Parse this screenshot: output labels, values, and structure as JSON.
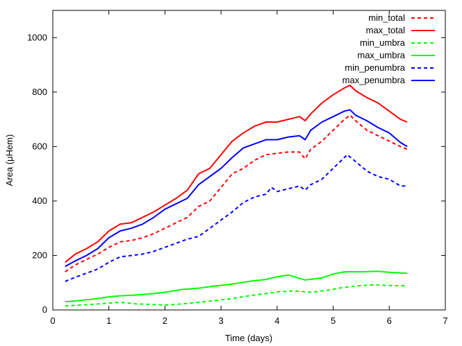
{
  "chart_data": {
    "type": "line",
    "xlabel": "Time (days)",
    "ylabel": "Area (μHem)",
    "xlim": [
      0,
      7
    ],
    "ylim": [
      0,
      1100
    ],
    "xticks": [
      0,
      1,
      2,
      3,
      4,
      5,
      6,
      7
    ],
    "yticks": [
      0,
      200,
      400,
      600,
      800,
      1000
    ],
    "legend_position": "top-right",
    "series": [
      {
        "name": "min_total",
        "color": "#ff0000",
        "dash": "dashed",
        "x": [
          0.22,
          0.4,
          0.6,
          0.8,
          1.0,
          1.2,
          1.4,
          1.6,
          1.8,
          2.0,
          2.2,
          2.4,
          2.6,
          2.8,
          3.0,
          3.2,
          3.4,
          3.6,
          3.8,
          4.0,
          4.2,
          4.4,
          4.5,
          4.6,
          4.8,
          5.0,
          5.2,
          5.3,
          5.4,
          5.6,
          5.8,
          6.0,
          6.2,
          6.32
        ],
        "y": [
          140,
          165,
          185,
          205,
          230,
          250,
          255,
          265,
          280,
          300,
          320,
          340,
          380,
          400,
          450,
          500,
          520,
          550,
          570,
          575,
          580,
          580,
          555,
          590,
          620,
          660,
          700,
          715,
          695,
          660,
          640,
          620,
          600,
          590
        ]
      },
      {
        "name": "max_total",
        "color": "#ff0000",
        "dash": "solid",
        "x": [
          0.22,
          0.4,
          0.6,
          0.8,
          1.0,
          1.2,
          1.4,
          1.6,
          1.8,
          2.0,
          2.2,
          2.4,
          2.6,
          2.8,
          3.0,
          3.2,
          3.4,
          3.6,
          3.8,
          4.0,
          4.2,
          4.4,
          4.5,
          4.6,
          4.8,
          5.0,
          5.2,
          5.3,
          5.4,
          5.6,
          5.8,
          6.0,
          6.2,
          6.32
        ],
        "y": [
          175,
          205,
          225,
          250,
          290,
          315,
          320,
          340,
          360,
          385,
          410,
          440,
          500,
          520,
          570,
          620,
          650,
          675,
          690,
          690,
          700,
          710,
          695,
          720,
          760,
          790,
          815,
          825,
          805,
          780,
          760,
          730,
          700,
          690
        ]
      },
      {
        "name": "min_umbra",
        "color": "#00ff00",
        "dash": "dashed",
        "x": [
          0.22,
          0.5,
          0.8,
          1.0,
          1.2,
          1.5,
          1.8,
          2.0,
          2.3,
          2.6,
          2.9,
          3.2,
          3.5,
          3.8,
          4.0,
          4.3,
          4.6,
          4.9,
          5.1,
          5.4,
          5.7,
          6.0,
          6.32
        ],
        "y": [
          15,
          18,
          22,
          25,
          28,
          22,
          20,
          18,
          22,
          28,
          35,
          42,
          52,
          60,
          66,
          70,
          65,
          72,
          80,
          88,
          92,
          90,
          88
        ]
      },
      {
        "name": "max_umbra",
        "color": "#00ff00",
        "dash": "solid",
        "x": [
          0.22,
          0.5,
          0.8,
          1.0,
          1.2,
          1.5,
          1.8,
          2.0,
          2.3,
          2.6,
          2.9,
          3.2,
          3.5,
          3.8,
          4.0,
          4.2,
          4.5,
          4.8,
          5.0,
          5.2,
          5.5,
          5.8,
          6.0,
          6.32
        ],
        "y": [
          30,
          35,
          42,
          48,
          52,
          55,
          60,
          65,
          75,
          80,
          88,
          95,
          105,
          112,
          122,
          128,
          110,
          118,
          132,
          140,
          140,
          142,
          138,
          135
        ]
      },
      {
        "name": "min_penumbra",
        "color": "#0000ff",
        "dash": "dashed",
        "x": [
          0.22,
          0.4,
          0.6,
          0.8,
          1.0,
          1.2,
          1.4,
          1.6,
          1.8,
          2.0,
          2.2,
          2.4,
          2.6,
          2.8,
          3.0,
          3.2,
          3.4,
          3.6,
          3.8,
          3.9,
          4.0,
          4.2,
          4.4,
          4.5,
          4.6,
          4.8,
          5.0,
          5.2,
          5.25,
          5.4,
          5.6,
          5.8,
          6.0,
          6.2,
          6.32
        ],
        "y": [
          105,
          120,
          135,
          150,
          175,
          195,
          200,
          205,
          215,
          230,
          245,
          260,
          270,
          300,
          330,
          360,
          395,
          415,
          425,
          450,
          435,
          445,
          455,
          440,
          460,
          480,
          520,
          560,
          570,
          545,
          510,
          490,
          480,
          455,
          455
        ]
      },
      {
        "name": "max_penumbra",
        "color": "#0000ff",
        "dash": "solid",
        "x": [
          0.22,
          0.4,
          0.6,
          0.8,
          1.0,
          1.2,
          1.4,
          1.6,
          1.8,
          2.0,
          2.2,
          2.4,
          2.6,
          2.8,
          3.0,
          3.2,
          3.4,
          3.6,
          3.8,
          4.0,
          4.2,
          4.4,
          4.5,
          4.6,
          4.8,
          5.0,
          5.2,
          5.3,
          5.4,
          5.6,
          5.8,
          6.0,
          6.2,
          6.32
        ],
        "y": [
          160,
          180,
          200,
          225,
          265,
          290,
          300,
          315,
          340,
          370,
          390,
          410,
          460,
          490,
          520,
          560,
          595,
          610,
          625,
          625,
          635,
          640,
          625,
          660,
          690,
          710,
          730,
          735,
          715,
          695,
          670,
          650,
          615,
          600
        ]
      }
    ]
  }
}
